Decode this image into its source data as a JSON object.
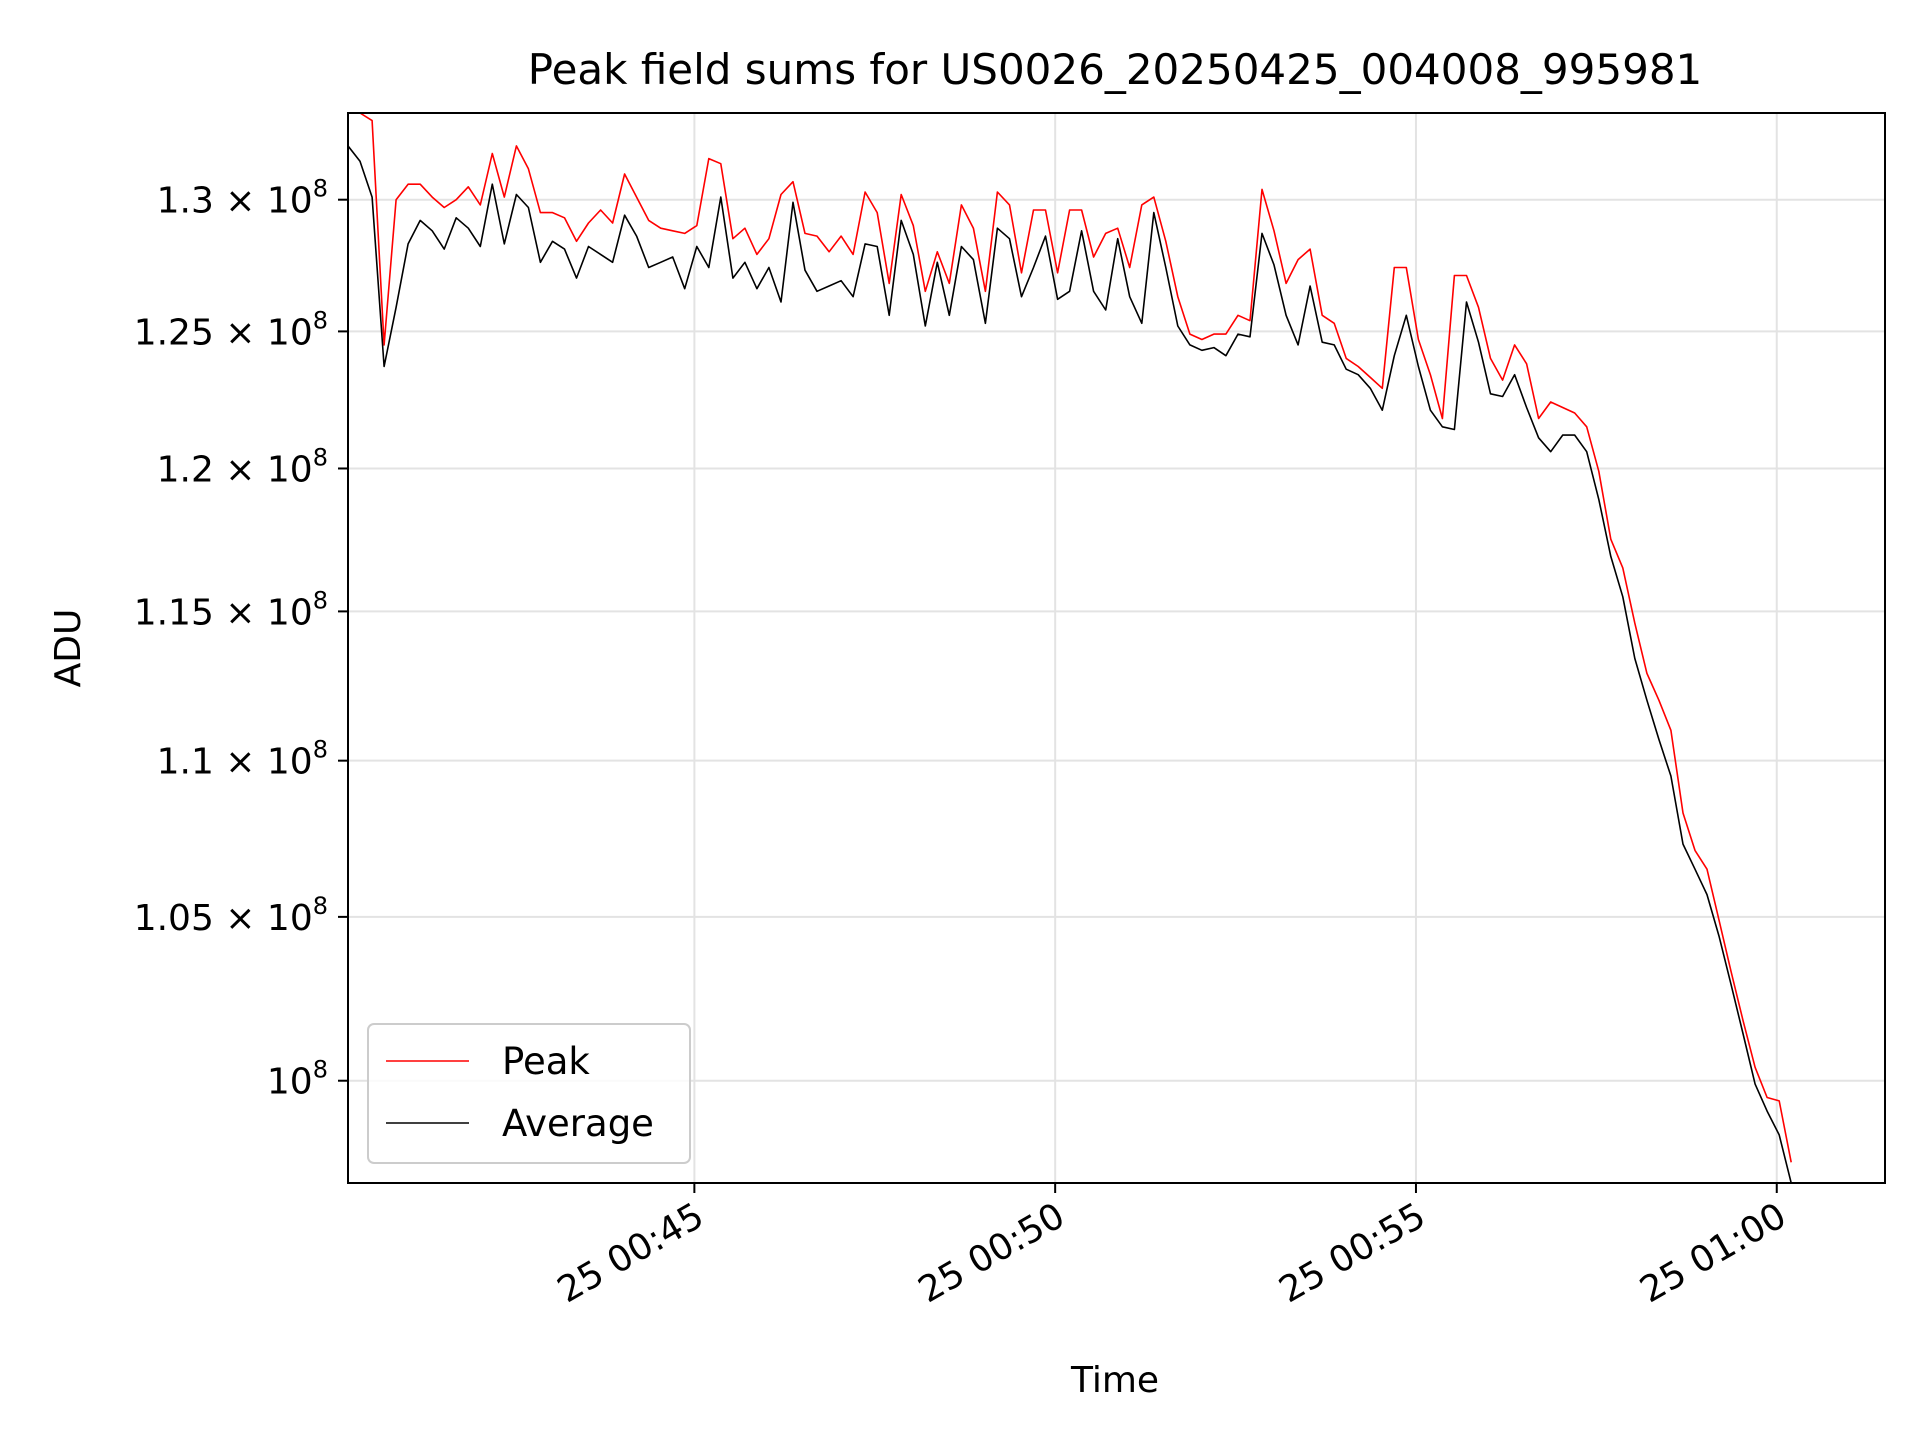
{
  "chart_data": {
    "type": "line",
    "title": "Peak field sums for US0026_20250425_004008_995981",
    "xlabel": "Time",
    "ylabel": "ADU",
    "yscale": "log",
    "ylim": [
      97000000,
      133400000
    ],
    "xlim": [
      "2025-04-25 00:40:12",
      "2025-04-25 01:01:30"
    ],
    "grid": true,
    "legend_position": "lower-left",
    "x_ticks": [
      {
        "value": "2025-04-25 00:45:00",
        "label": "25 00:45"
      },
      {
        "value": "2025-04-25 00:50:00",
        "label": "25 00:50"
      },
      {
        "value": "2025-04-25 00:55:00",
        "label": "25 00:55"
      },
      {
        "value": "2025-04-25 01:00:00",
        "label": "25 01:00"
      }
    ],
    "y_ticks": [
      {
        "value": 100000000,
        "mantissa": "",
        "exponent": "8"
      },
      {
        "value": 105000000,
        "mantissa": "1.05",
        "exponent": "8"
      },
      {
        "value": 110000000,
        "mantissa": "1.1",
        "exponent": "8"
      },
      {
        "value": 115000000,
        "mantissa": "1.15",
        "exponent": "8"
      },
      {
        "value": 120000000,
        "mantissa": "1.2",
        "exponent": "8"
      },
      {
        "value": 125000000,
        "mantissa": "1.25",
        "exponent": "8"
      },
      {
        "value": 130000000,
        "mantissa": "1.3",
        "exponent": "8"
      }
    ],
    "x_start": "2025-04-25 00:40:12",
    "x_step_seconds": 10.0,
    "series": [
      {
        "name": "Peak",
        "color": "#ff0000",
        "values": [
          133.4,
          133.4,
          133.1,
          124.5,
          130.0,
          130.6,
          130.6,
          130.1,
          129.7,
          130.0,
          130.5,
          129.8,
          131.8,
          130.1,
          132.1,
          131.2,
          129.5,
          129.5,
          129.3,
          128.4,
          129.1,
          129.6,
          129.1,
          131.0,
          130.1,
          129.2,
          128.9,
          128.8,
          128.7,
          129.0,
          131.6,
          131.4,
          128.5,
          128.9,
          127.9,
          128.5,
          130.2,
          130.7,
          128.7,
          128.6,
          128.0,
          128.6,
          127.9,
          130.3,
          129.5,
          126.8,
          130.2,
          129.0,
          126.5,
          128.0,
          126.8,
          129.8,
          128.9,
          126.5,
          130.3,
          129.8,
          127.2,
          129.6,
          129.6,
          127.2,
          129.6,
          129.6,
          127.8,
          128.7,
          128.9,
          127.4,
          129.8,
          130.1,
          128.4,
          126.3,
          124.9,
          124.7,
          124.9,
          124.9,
          125.6,
          125.4,
          130.4,
          128.8,
          126.8,
          127.7,
          128.1,
          125.6,
          125.3,
          124.0,
          123.7,
          123.3,
          122.9,
          127.4,
          127.4,
          124.7,
          123.4,
          121.8,
          127.1,
          127.1,
          125.9,
          124.0,
          123.2,
          124.5,
          123.8,
          121.8,
          122.4,
          122.2,
          122.0,
          121.5,
          119.9,
          117.5,
          116.5,
          114.6,
          112.9,
          112.0,
          111.0,
          108.3,
          107.1,
          106.5,
          104.9,
          103.3,
          101.8,
          100.4,
          99.5,
          99.4,
          97.6
        ]
      },
      {
        "name": "Average",
        "color": "#000000",
        "values": [
          132.1,
          131.5,
          130.1,
          123.7,
          125.9,
          128.3,
          129.2,
          128.8,
          128.1,
          129.3,
          128.9,
          128.2,
          130.6,
          128.3,
          130.2,
          129.7,
          127.6,
          128.4,
          128.1,
          127.0,
          128.2,
          127.9,
          127.6,
          129.4,
          128.6,
          127.4,
          127.6,
          127.8,
          126.6,
          128.2,
          127.4,
          130.1,
          127.0,
          127.6,
          126.6,
          127.4,
          126.1,
          129.9,
          127.3,
          126.5,
          126.7,
          126.9,
          126.3,
          128.3,
          128.2,
          125.6,
          129.2,
          127.9,
          125.2,
          127.6,
          125.6,
          128.2,
          127.7,
          125.3,
          128.9,
          128.5,
          126.3,
          127.4,
          128.6,
          126.2,
          126.5,
          128.8,
          126.5,
          125.8,
          128.5,
          126.3,
          125.3,
          129.5,
          127.4,
          125.2,
          124.5,
          124.3,
          124.4,
          124.1,
          124.9,
          124.8,
          128.7,
          127.5,
          125.6,
          124.5,
          126.7,
          124.6,
          124.5,
          123.6,
          123.4,
          122.9,
          122.1,
          124.1,
          125.6,
          123.7,
          122.1,
          121.5,
          121.4,
          126.1,
          124.6,
          122.7,
          122.6,
          123.4,
          122.2,
          121.1,
          120.6,
          121.2,
          121.2,
          120.6,
          118.9,
          116.9,
          115.5,
          113.4,
          112.0,
          110.7,
          109.5,
          107.3,
          106.5,
          105.7,
          104.4,
          102.9,
          101.4,
          99.9,
          99.1,
          98.4,
          97.0
        ]
      }
    ]
  }
}
